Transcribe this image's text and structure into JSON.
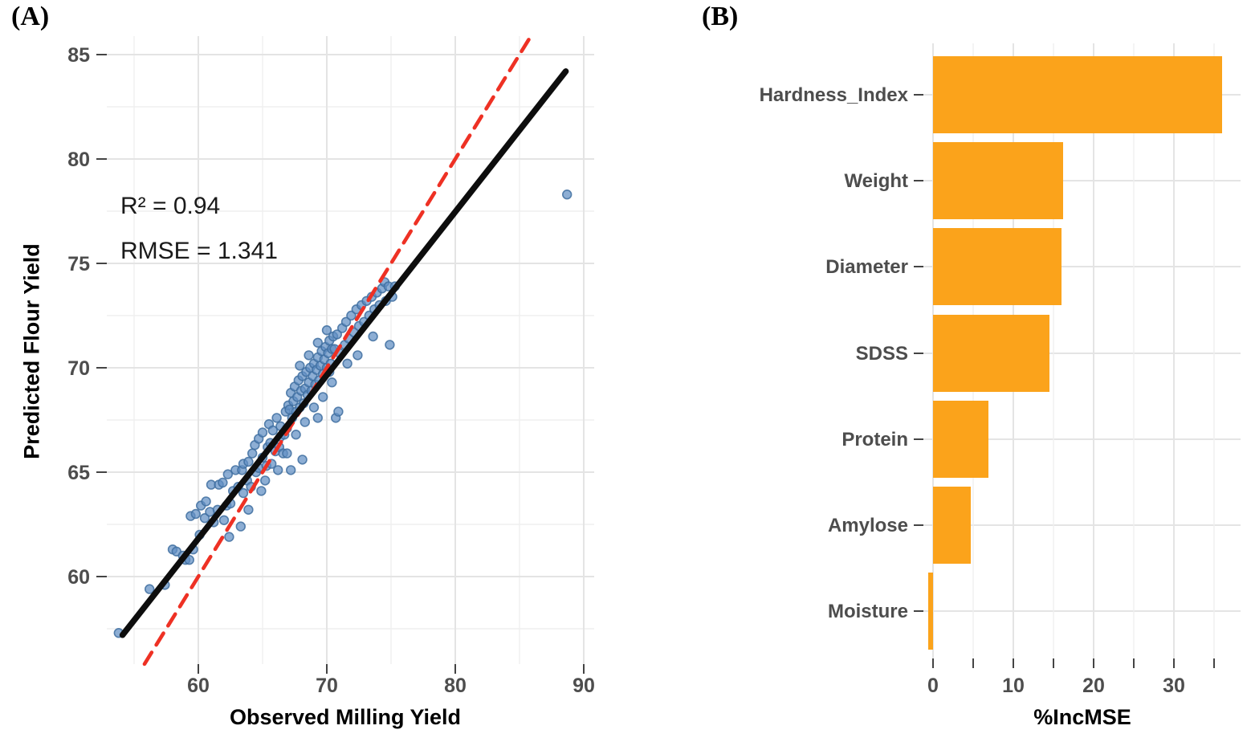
{
  "figure": {
    "panel_a": {
      "tag": "(A)",
      "xlabel": "Observed Milling Yield",
      "ylabel": "Predicted Flour Yield",
      "annotation_r2": "R² = 0.94",
      "annotation_rmse": "RMSE = 1.341"
    },
    "panel_b": {
      "tag": "(B)",
      "xlabel": "%IncMSE"
    }
  },
  "chart_data": [
    {
      "type": "scatter",
      "panel": "A",
      "xlabel": "Observed Milling Yield",
      "ylabel": "Predicted Flour Yield",
      "x_ticks": [
        60,
        70,
        80,
        90
      ],
      "y_ticks": [
        60,
        65,
        70,
        75,
        80,
        85
      ],
      "x_minor": [
        55,
        65,
        75,
        85
      ],
      "y_minor": [
        57.5,
        62.5,
        67.5,
        72.5,
        77.5,
        82.5
      ],
      "xlim": [
        52.9,
        90.8
      ],
      "ylim": [
        55.8,
        85.9
      ],
      "grid": true,
      "annotations": [
        "R² = 0.94",
        "RMSE = 1.341"
      ],
      "r_squared": 0.94,
      "rmse": 1.341,
      "fit_line": {
        "x1": 54.1,
        "y1": 57.2,
        "x2": 88.6,
        "y2": 84.2
      },
      "identity_line": {
        "x1": 55.81,
        "y1": 55.81,
        "x2": 85.88,
        "y2": 85.88
      },
      "colors": {
        "point_fill": "#618FC3",
        "point_stroke": "#3F6FA0",
        "fit_line": "#0d0d0d",
        "identity_line": "#EE3124",
        "grid_major": "#e4e4e4",
        "grid_minor": "#efefef",
        "tick": "#444444",
        "tick_label": "#4d4d4d"
      },
      "points": [
        [
          53.8,
          57.3
        ],
        [
          56.2,
          59.4
        ],
        [
          57.4,
          59.6
        ],
        [
          58.0,
          61.3
        ],
        [
          58.3,
          61.2
        ],
        [
          58.8,
          61.0
        ],
        [
          59.0,
          60.8
        ],
        [
          59.3,
          60.8
        ],
        [
          59.4,
          62.9
        ],
        [
          59.6,
          61.3
        ],
        [
          59.8,
          63.0
        ],
        [
          60.1,
          62.0
        ],
        [
          60.2,
          63.4
        ],
        [
          60.5,
          62.8
        ],
        [
          60.6,
          63.6
        ],
        [
          60.9,
          63.1
        ],
        [
          61.0,
          64.4
        ],
        [
          61.2,
          62.6
        ],
        [
          61.5,
          63.2
        ],
        [
          61.6,
          64.4
        ],
        [
          61.9,
          64.5
        ],
        [
          62.0,
          62.7
        ],
        [
          62.2,
          63.4
        ],
        [
          62.3,
          64.9
        ],
        [
          62.5,
          63.5
        ],
        [
          62.4,
          61.9
        ],
        [
          63.3,
          62.4
        ],
        [
          62.9,
          65.1
        ],
        [
          62.7,
          64.1
        ],
        [
          63.1,
          64.3
        ],
        [
          63.4,
          65.1
        ],
        [
          63.5,
          64.0
        ],
        [
          63.5,
          65.4
        ],
        [
          63.8,
          64.6
        ],
        [
          63.9,
          63.2
        ],
        [
          63.9,
          65.5
        ],
        [
          64.1,
          64.3
        ],
        [
          64.2,
          65.9
        ],
        [
          64.4,
          66.3
        ],
        [
          64.5,
          65.0
        ],
        [
          64.7,
          65.2
        ],
        [
          64.7,
          66.6
        ],
        [
          64.9,
          64.1
        ],
        [
          65.0,
          65.7
        ],
        [
          65.0,
          66.9
        ],
        [
          65.2,
          64.6
        ],
        [
          65.3,
          65.3
        ],
        [
          65.4,
          66.2
        ],
        [
          65.5,
          67.3
        ],
        [
          65.6,
          66.4
        ],
        [
          65.7,
          65.4
        ],
        [
          65.8,
          67.0
        ],
        [
          66.0,
          66.0
        ],
        [
          66.1,
          67.6
        ],
        [
          66.2,
          65.1
        ],
        [
          66.3,
          66.2
        ],
        [
          66.4,
          66.7
        ],
        [
          66.4,
          67.2
        ],
        [
          66.6,
          65.9
        ],
        [
          66.7,
          66.8
        ],
        [
          66.8,
          67.9
        ],
        [
          66.9,
          65.9
        ],
        [
          66.9,
          67.1
        ],
        [
          67.0,
          68.2
        ],
        [
          67.2,
          65.1
        ],
        [
          68.1,
          65.6
        ],
        [
          67.1,
          68.0
        ],
        [
          67.2,
          68.8
        ],
        [
          67.3,
          67.6
        ],
        [
          67.4,
          68.4
        ],
        [
          67.5,
          69.1
        ],
        [
          67.6,
          66.8
        ],
        [
          67.6,
          67.9
        ],
        [
          67.7,
          68.6
        ],
        [
          67.8,
          69.4
        ],
        [
          67.9,
          68.1
        ],
        [
          67.9,
          70.1
        ],
        [
          68.0,
          68.9
        ],
        [
          68.1,
          69.6
        ],
        [
          68.2,
          68.3
        ],
        [
          68.3,
          67.4
        ],
        [
          68.3,
          69.0
        ],
        [
          68.4,
          69.8
        ],
        [
          68.5,
          68.7
        ],
        [
          68.6,
          69.3
        ],
        [
          68.6,
          70.6
        ],
        [
          68.7,
          70.0
        ],
        [
          68.8,
          68.9
        ],
        [
          68.9,
          69.6
        ],
        [
          69.0,
          68.1
        ],
        [
          69.0,
          70.2
        ],
        [
          69.1,
          69.2
        ],
        [
          69.2,
          69.9
        ],
        [
          69.3,
          67.6
        ],
        [
          69.3,
          70.5
        ],
        [
          69.3,
          71.2
        ],
        [
          69.4,
          69.4
        ],
        [
          69.5,
          70.1
        ],
        [
          69.6,
          70.8
        ],
        [
          69.7,
          68.6
        ],
        [
          69.7,
          69.7
        ],
        [
          69.8,
          70.4
        ],
        [
          69.9,
          71.0
        ],
        [
          70.0,
          70.0
        ],
        [
          70.0,
          71.8
        ],
        [
          70.1,
          70.7
        ],
        [
          70.2,
          69.8
        ],
        [
          70.2,
          71.3
        ],
        [
          70.3,
          70.2
        ],
        [
          70.4,
          69.3
        ],
        [
          70.4,
          70.9
        ],
        [
          70.5,
          71.5
        ],
        [
          70.6,
          70.9
        ],
        [
          70.7,
          67.6
        ],
        [
          70.8,
          71.6
        ],
        [
          70.9,
          67.9
        ],
        [
          71.0,
          70.7
        ],
        [
          71.2,
          71.9
        ],
        [
          71.4,
          71.1
        ],
        [
          71.5,
          72.2
        ],
        [
          71.6,
          70.2
        ],
        [
          71.7,
          71.4
        ],
        [
          71.9,
          72.5
        ],
        [
          72.1,
          71.7
        ],
        [
          72.3,
          72.8
        ],
        [
          72.4,
          70.6
        ],
        [
          72.5,
          72.0
        ],
        [
          72.7,
          73.0
        ],
        [
          72.9,
          72.2
        ],
        [
          73.1,
          73.2
        ],
        [
          73.3,
          72.5
        ],
        [
          73.5,
          73.4
        ],
        [
          73.6,
          71.5
        ],
        [
          73.7,
          72.8
        ],
        [
          73.9,
          73.6
        ],
        [
          74.1,
          73.0
        ],
        [
          74.3,
          73.8
        ],
        [
          74.5,
          74.1
        ],
        [
          74.6,
          73.2
        ],
        [
          74.8,
          73.9
        ],
        [
          74.9,
          71.1
        ],
        [
          75.1,
          73.4
        ],
        [
          75.3,
          73.9
        ],
        [
          88.7,
          78.3
        ]
      ]
    },
    {
      "type": "bar",
      "panel": "B",
      "orientation": "horizontal",
      "categories": [
        "Hardness_Index",
        "Weight",
        "Diameter",
        "SDSS",
        "Protein",
        "Amylose",
        "Moisture"
      ],
      "values": [
        36.0,
        16.2,
        16.0,
        14.5,
        6.9,
        4.7,
        -0.6
      ],
      "xlabel": "%IncMSE",
      "x_ticks": [
        0,
        10,
        20,
        30
      ],
      "x_minor": [
        5,
        15,
        25,
        35
      ],
      "xlim": [
        -1.2,
        38.3
      ],
      "grid": true,
      "colors": {
        "bar_fill": "#FBA31B",
        "grid_major": "#e4e4e4",
        "grid_minor": "#efefef",
        "tick": "#444444",
        "tick_label": "#4d4d4d"
      }
    }
  ]
}
